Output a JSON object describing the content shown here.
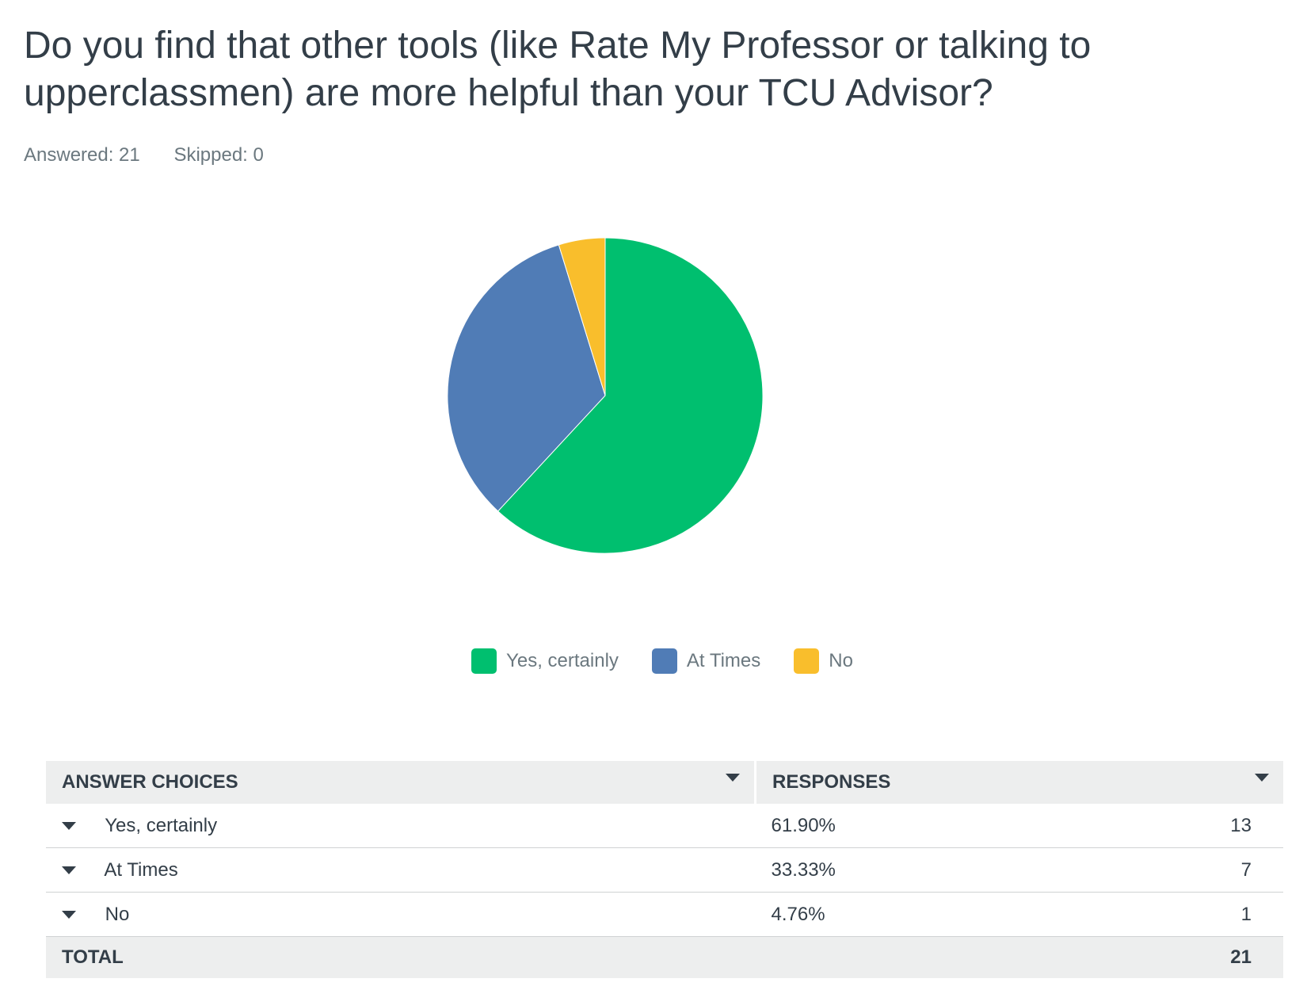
{
  "question": {
    "title": "Do you find that other tools (like Rate My Professor or talking to upperclassmen) are more helpful than your TCU Advisor?",
    "answered": "Answered: 21",
    "skipped": "Skipped: 0"
  },
  "chart_data": {
    "type": "pie",
    "categories": [
      "Yes, certainly",
      "At Times",
      "No"
    ],
    "values": [
      61.9,
      33.33,
      4.76
    ],
    "colors": [
      "#00bf6f",
      "#507cb6",
      "#f9be2c"
    ]
  },
  "legend": [
    {
      "label": "Yes, certainly",
      "color": "#00bf6f"
    },
    {
      "label": "At Times",
      "color": "#507cb6"
    },
    {
      "label": "No",
      "color": "#f9be2c"
    }
  ],
  "table": {
    "headers": {
      "choices": "ANSWER CHOICES",
      "responses": "RESPONSES"
    },
    "rows": [
      {
        "choice": "Yes, certainly",
        "percent": "61.90%",
        "count": "13"
      },
      {
        "choice": "At Times",
        "percent": "33.33%",
        "count": "7"
      },
      {
        "choice": "No",
        "percent": "4.76%",
        "count": "1"
      }
    ],
    "total": {
      "label": "TOTAL",
      "count": "21"
    }
  }
}
